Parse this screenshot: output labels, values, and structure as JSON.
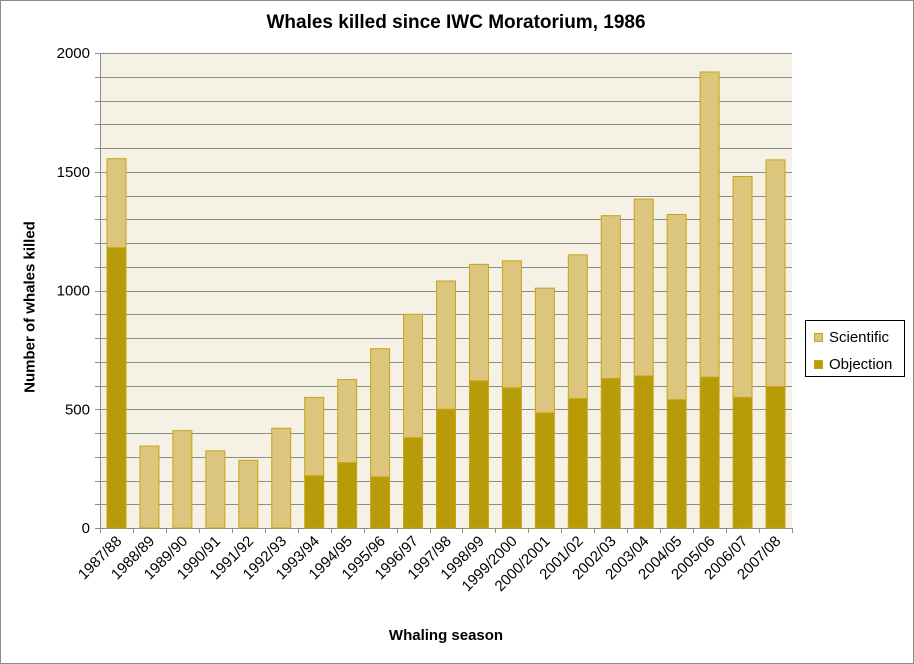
{
  "chart_data": {
    "type": "bar",
    "stacked": true,
    "title": "Whales killed since IWC Moratorium, 1986",
    "xlabel": "Whaling season",
    "ylabel": "Number of whales killed",
    "ylim": [
      0,
      2000
    ],
    "yticks": [
      0,
      500,
      1000,
      1500,
      2000
    ],
    "grid": true,
    "legend_position": "right",
    "categories": [
      "1987/88",
      "1988/89",
      "1989/90",
      "1990/91",
      "1991/92",
      "1992/93",
      "1993/94",
      "1994/95",
      "1995/96",
      "1996/97",
      "1997/98",
      "1998/99",
      "1999/2000",
      "2000/2001",
      "2001/02",
      "2002/03",
      "2003/04",
      "2004/05",
      "2005/06",
      "2006/07",
      "2007/08"
    ],
    "series": [
      {
        "name": "Objection",
        "color": "#b89b08",
        "values": [
          1180,
          0,
          0,
          0,
          0,
          0,
          220,
          275,
          215,
          380,
          500,
          620,
          590,
          485,
          545,
          630,
          640,
          540,
          635,
          550,
          595
        ]
      },
      {
        "name": "Scientific",
        "color": "#dcc57c",
        "values": [
          375,
          345,
          410,
          325,
          285,
          420,
          330,
          350,
          540,
          520,
          540,
          490,
          535,
          525,
          605,
          685,
          745,
          780,
          1285,
          930,
          955
        ]
      }
    ],
    "legend_order": [
      "Scientific",
      "Objection"
    ],
    "plot_background": "#f6f1e5",
    "bar_stroke": "#c8a414",
    "grid_color": "#8c8c8c"
  }
}
